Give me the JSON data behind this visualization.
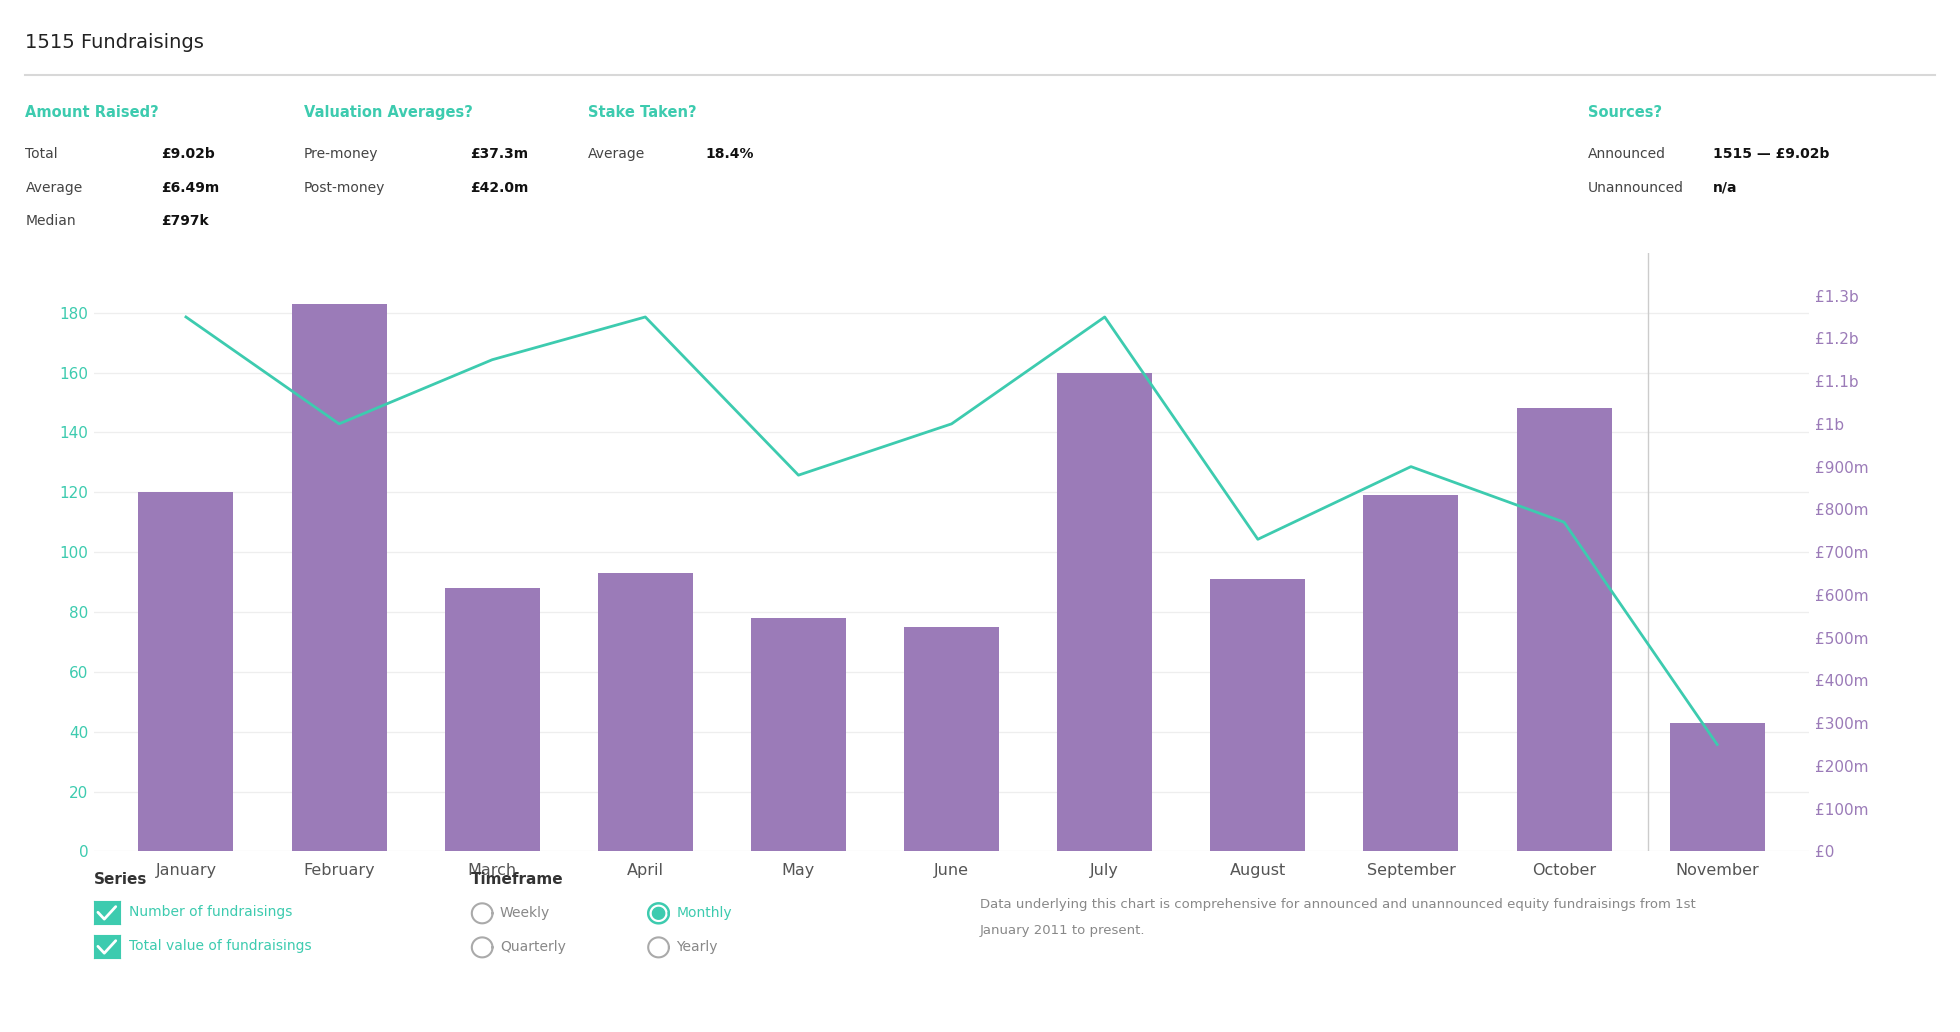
{
  "title": "1515 Fundraisings",
  "months": [
    "January",
    "February",
    "March",
    "April",
    "May",
    "June",
    "July",
    "August",
    "September",
    "October",
    "November"
  ],
  "bar_values": [
    120,
    183,
    88,
    93,
    78,
    75,
    160,
    91,
    119,
    148,
    43
  ],
  "line_values": [
    1.25,
    1.0,
    1.15,
    1.25,
    0.88,
    1.0,
    1.25,
    0.73,
    0.9,
    0.77,
    0.25
  ],
  "bar_color": "#9b7bb8",
  "line_color": "#3dcbaf",
  "left_yticks": [
    0,
    20,
    40,
    60,
    80,
    100,
    120,
    140,
    160,
    180
  ],
  "right_ytick_labels": [
    "£0",
    "£100m",
    "£200m",
    "£300m",
    "£400m",
    "£500m",
    "£600m",
    "£700m",
    "£800m",
    "£900m",
    "£1b",
    "£1.1b",
    "£1.2b",
    "£1.3b"
  ],
  "right_ytick_values": [
    0.0,
    0.1,
    0.2,
    0.3,
    0.4,
    0.5,
    0.6,
    0.7,
    0.8,
    0.9,
    1.0,
    1.1,
    1.2,
    1.3
  ],
  "header_color": "#3dcbaf",
  "background_color": "#ffffff",
  "stats_labels": [
    "Total",
    "Average",
    "Median"
  ],
  "stats_values": [
    "£9.02b",
    "£6.49m",
    "£797k"
  ],
  "val_avg_label": [
    "Pre-money",
    "Post-money"
  ],
  "val_avg_values": [
    "£37.3m",
    "£42.0m"
  ],
  "stake_label": "Average",
  "stake_value": "18.4%",
  "sources_labels": [
    "Announced",
    "Unannounced"
  ],
  "sources_values": [
    "1515 — £9.02b",
    "n/a"
  ],
  "series_labels": [
    "Number of fundraisings",
    "Total value of fundraisings"
  ],
  "footnote_line1": "Data underlying this chart is comprehensive for announced and unannounced equity fundraisings from 1st",
  "footnote_line2": "January 2011 to present."
}
